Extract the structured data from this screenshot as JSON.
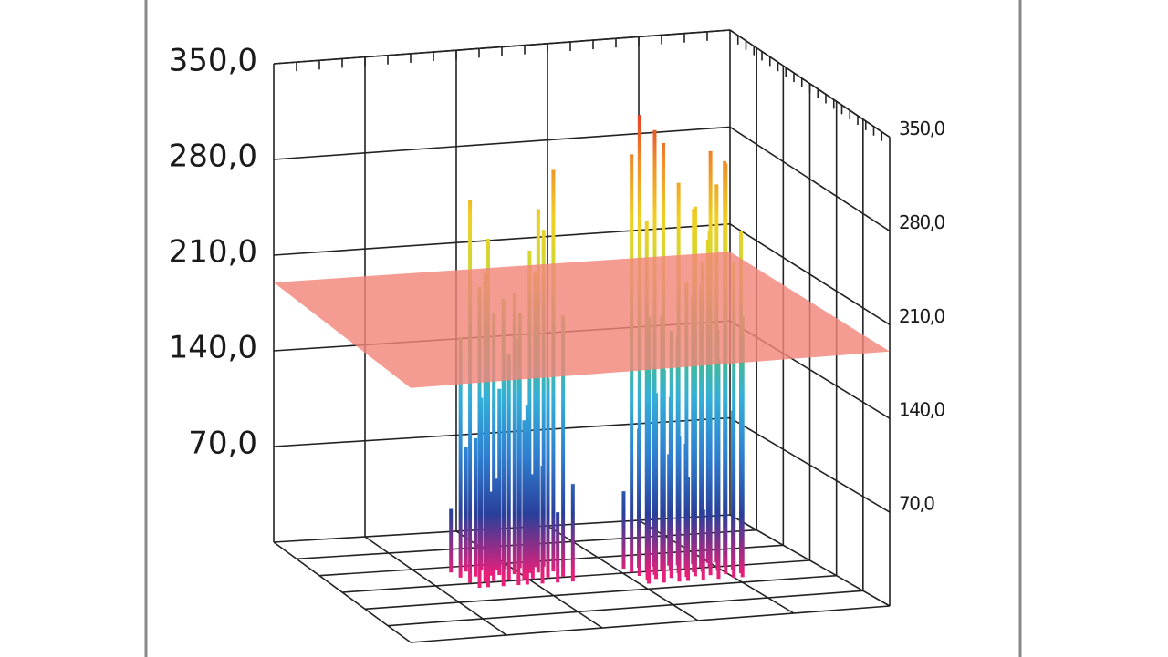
{
  "chart_data": {
    "type": "surface3d",
    "ylim": [
      0,
      350
    ],
    "yticks": [
      {
        "value": 70,
        "label": "70,0"
      },
      {
        "value": 140,
        "label": "140,0"
      },
      {
        "value": 210,
        "label": "210,0"
      },
      {
        "value": 280,
        "label": "280,0"
      },
      {
        "value": 350,
        "label": "350,0"
      }
    ],
    "y2lim": [
      0,
      350
    ],
    "y2ticks": [
      {
        "value": 70,
        "label": "70,0"
      },
      {
        "value": 140,
        "label": "140,0"
      },
      {
        "value": 210,
        "label": "210,0"
      },
      {
        "value": 280,
        "label": "280,0"
      },
      {
        "value": 350,
        "label": "350,0"
      }
    ],
    "grid": true,
    "plane_level": 190,
    "plane_color": "#f2857a",
    "colorscale": [
      "#e8207a",
      "#2a3f9a",
      "#2f7fd0",
      "#34b0d8",
      "#4cc06a",
      "#c8d838",
      "#f0d020",
      "#f08a2a",
      "#e02828"
    ],
    "series": [
      {
        "values": [
          40,
          85,
          120,
          60,
          150,
          180,
          210,
          240,
          170,
          95,
          55,
          130,
          200,
          230,
          260,
          288,
          275,
          220,
          190,
          160,
          110,
          70,
          140,
          185,
          215,
          250,
          205,
          175,
          125,
          80,
          45,
          65
        ]
      },
      {
        "values": [
          50,
          95,
          140,
          75,
          160,
          190,
          230,
          270,
          300,
          250,
          180,
          120,
          85,
          200,
          240,
          290,
          332,
          320,
          310,
          280,
          260,
          220,
          170,
          110,
          60,
          130,
          175,
          210,
          265,
          305,
          295,
          245,
          190,
          150,
          100,
          70,
          45,
          155,
          225,
          185
        ]
      }
    ]
  }
}
